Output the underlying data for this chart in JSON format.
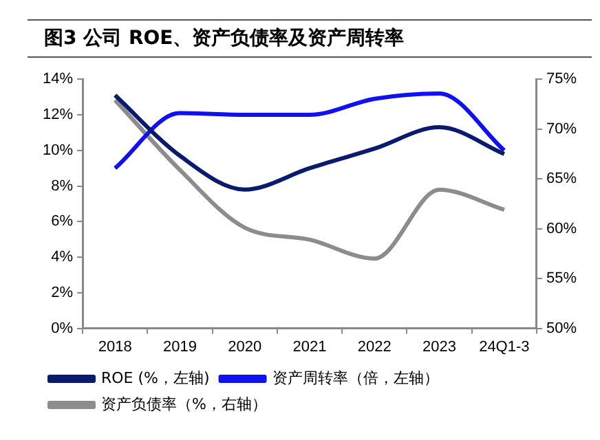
{
  "chart_data": {
    "type": "line",
    "title": "图3  公司 ROE、资产负债率及资产周转率",
    "categories": [
      "2018",
      "2019",
      "2020",
      "2021",
      "2022",
      "2023",
      "24Q1-3"
    ],
    "series": [
      {
        "name": "ROE (%，左轴)",
        "color": "#0a1a6e",
        "values": [
          13.1,
          9.7,
          7.8,
          9.0,
          10.1,
          11.3,
          9.8
        ]
      },
      {
        "name": "资产周转率（倍，左轴）",
        "color": "#1010f0",
        "values": [
          9.0,
          12.1,
          12.0,
          12.0,
          12.9,
          13.2,
          10.0
        ]
      },
      {
        "name": "资产负债率（%，右轴）",
        "color": "#8c8c8c",
        "axis": "y2",
        "values": [
          72.9,
          65.9,
          60.1,
          58.9,
          57.0,
          63.9,
          61.9
        ]
      }
    ],
    "ylim": [
      0,
      14
    ],
    "yticks": [
      {
        "value": 0,
        "label": "0%"
      },
      {
        "value": 2,
        "label": "2%"
      },
      {
        "value": 4,
        "label": "4%"
      },
      {
        "value": 6,
        "label": "6%"
      },
      {
        "value": 8,
        "label": "8%"
      },
      {
        "value": 10,
        "label": "10%"
      },
      {
        "value": 12,
        "label": "12%"
      },
      {
        "value": 14,
        "label": "14%"
      }
    ],
    "y2lim": [
      50,
      75
    ],
    "y2ticks": [
      {
        "value": 50,
        "label": "50%"
      },
      {
        "value": 55,
        "label": "55%"
      },
      {
        "value": 60,
        "label": "60%"
      },
      {
        "value": 65,
        "label": "65%"
      },
      {
        "value": 70,
        "label": "70%"
      },
      {
        "value": 75,
        "label": "75%"
      }
    ],
    "grid": false,
    "legend": "bottom",
    "marker": "none",
    "line_style": "solid"
  }
}
